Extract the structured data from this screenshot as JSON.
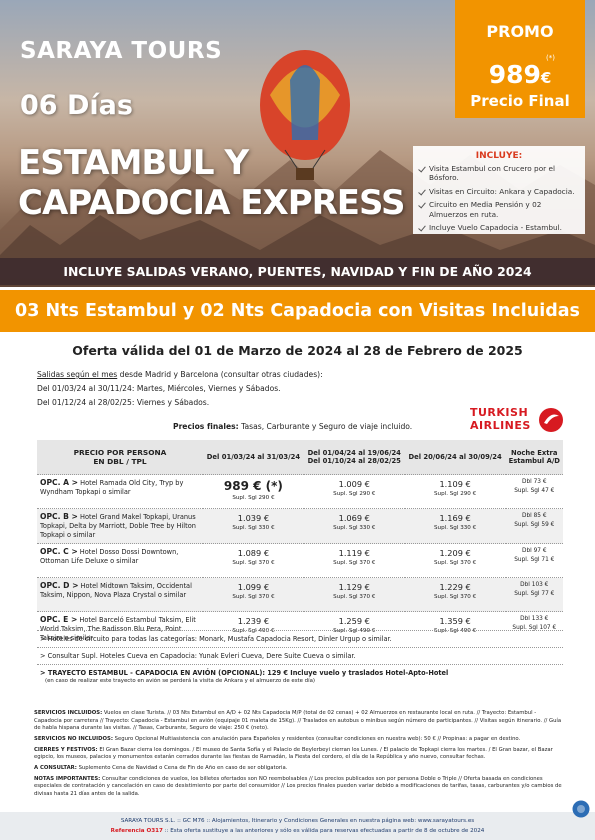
{
  "header": {
    "brand": "SARAYA TOURS",
    "days": "06 Días",
    "title_line1": "ESTAMBUL Y",
    "title_line2": "CAPADOCIA EXPRESS",
    "promo": {
      "label": "PROMO",
      "note": "(*)",
      "price": "989",
      "currency": "€",
      "caption": "Precio Final"
    },
    "includes": {
      "title": "INCLUYE:",
      "items": [
        "Visita Estambul con Crucero por el Bósforo.",
        "Visitas en Circuito: Ankara y Capadocia.",
        "Circuito en Media Pensión y 02 Almuerzos en ruta.",
        "Incluye Vuelo Capadocia - Estambul."
      ]
    },
    "banner": "INCLUYE SALIDAS VERANO, PUENTES, NAVIDAD Y FIN DE AÑO 2024"
  },
  "subtitle": "03 Nts Estambul y 02 Nts Capadocia con Visitas Incluidas",
  "validity": "Oferta válida del 01 de Marzo de 2024 al 28 de Febrero de 2025",
  "departures": {
    "intro_underlined": "Salidas según el mes",
    "intro_rest": " desde Madrid y Barcelona (consultar otras ciudades):",
    "lines": [
      "Del 01/03/24 al 30/11/24: Martes, Miércoles, Viernes y Sábados.",
      "Del 01/12/24 al 28/02/25: Viernes y Sábados."
    ]
  },
  "prices_note": {
    "label": "Precios finales:",
    "text": " Tasas, Carburante y Seguro de viaje incluido."
  },
  "airline": {
    "name1": "TURKISH",
    "name2": "AIRLINES"
  },
  "table": {
    "headers": [
      [
        "PRECIO POR PERSONA",
        "EN DBL / TPL"
      ],
      [
        "Del 01/03/24 al 31/03/24"
      ],
      [
        "Del 01/04/24 al 19/06/24",
        "Del 01/10/24 al 28/02/25"
      ],
      [
        "Del 20/06/24 al 30/09/24"
      ],
      [
        "Noche Extra",
        "Estambul A/D"
      ]
    ],
    "rows": [
      {
        "option": "OPC. A >",
        "hotels": " Hotel Ramada Old City, Tryp by Wyndham Topkapi o similar",
        "prices": [
          [
            "989 € (*)",
            "Supl. Sgl 290 €"
          ],
          [
            "1.009 €",
            "Supl. Sgl 290 €"
          ],
          [
            "1.109 €",
            "Supl. Sgl 290 €"
          ]
        ],
        "extra": [
          "Dbl 73 €",
          "Supl. Sgl 47 €"
        ]
      },
      {
        "option": "OPC. B >",
        "hotels": " Hotel Grand Makel Topkapi, Uranus Topkapi, Delta by Marriott, Doble Tree by Hilton Topkapi o similar",
        "prices": [
          [
            "1.039 €",
            "Supl. Sgl 330 €"
          ],
          [
            "1.069 €",
            "Supl. Sgl 330 €"
          ],
          [
            "1.169 €",
            "Supl. Sgl 330 €"
          ]
        ],
        "extra": [
          "Dbl 85 €",
          "Supl. Sgl 59 €"
        ]
      },
      {
        "option": "OPC. C >",
        "hotels": " Hotel Dosso Dossi Downtown, Ottoman Life Deluxe o similar",
        "prices": [
          [
            "1.089 €",
            "Supl. Sgl 370 €"
          ],
          [
            "1.119 €",
            "Supl. Sgl 370 €"
          ],
          [
            "1.209 €",
            "Supl. Sgl 370 €"
          ]
        ],
        "extra": [
          "Dbl 97 €",
          "Supl. Sgl 71 €"
        ]
      },
      {
        "option": "OPC. D >",
        "hotels": " Hotel Midtown Taksim, Occidental Taksim, Nippon, Nova Plaza Crystal o similar",
        "prices": [
          [
            "1.099 €",
            "Supl. Sgl 370 €"
          ],
          [
            "1.129 €",
            "Supl. Sgl 370 €"
          ],
          [
            "1.229 €",
            "Supl. Sgl 370 €"
          ]
        ],
        "extra": [
          "Dbl 103 €",
          "Supl. Sgl 77 €"
        ]
      },
      {
        "option": "OPC. E >",
        "hotels": " Hotel Barceló Estambul Taksim, Elit World Taksim, The Radisson Blu Pera, Point Taksim o similar",
        "prices": [
          [
            "1.239 €",
            "Supl. Sgl 490 €"
          ],
          [
            "1.259 €",
            "Supl. Sgl 490 €"
          ],
          [
            "1.359 €",
            "Supl. Sgl 490 €"
          ]
        ],
        "extra": [
          "Dbl 133 €",
          "Supl. Sgl 107 €"
        ]
      }
    ]
  },
  "extras": [
    "> Hoteles de circuito para todas las categorías: Monark, Mustafa Capadocia Resort, Dinler Urgup o similar.",
    "> Consultar Supl. Hoteles Cueva en Capadocia: Yunak Evleri Cueva, Dere Suite Cueva o similar.",
    "> TRAYECTO ESTAMBUL - CAPADOCIA EN AVIÓN (OPCIONAL): 129 € Incluye vuelo y traslados Hotel-Apto-Hotel",
    "(en caso de realizar este trayecto en avión se perderá la visita de Ankara y el almuerzo de este día)"
  ],
  "notes": [
    {
      "label": "SERVICIOS INCLUIDOS:",
      "text": " Vuelos en clase Turista. // 03 Nts Estambul en A/D + 02 Nts Capadocia M/P (total de 02 cenas) + 02 Almuerzos en restaurante local en ruta. // Trayecto: Estambul - Capadocia por carretera // Trayecto: Capadocia - Estambul en avión (equipaje 01 maleta de 15Kg). // Traslados en autobus o minibus según número de participantes. // Visitas según itinerario. // Guía de habla hispana durante las visitas. // Tasas, Carburante, Seguro de viaje: 250 € (neto)."
    },
    {
      "label": "SERVICIOS NO INCLUIDOS:",
      "text": " Seguro Opcional Multiasistencia con anulación para Españoles y residentes (consultar condiciones en nuestra web): 50 € // Propinas: a pagar en destino."
    },
    {
      "label": "CIERRES Y FESTIVOS:",
      "text": " El Gran Bazar cierra los domingos. / El museo de Santa Sofía y el Palacio de Beylerbeyi cierran los Lunes. / El palacio de Topkapi cierra los martes. / El Gran bazar, el Bazar egipcio, los museos, palacios y monumentos estarán cerrados durante las fiestas de Ramadán, la Fiesta del cordero, el día de la República y año nuevo, consultar fechas."
    },
    {
      "label": "A CONSULTAR:",
      "text": " Suplemento Cena de Navidad o Cena de Fin de Año en caso de ser obligatoria."
    },
    {
      "label": "NOTAS IMPORTANTES:",
      "text": " Consultar condiciones de vuelos, los billetes ofertados son NO reembolsables // Los precios publicados son por persona Doble o Triple // Oferta basada en condiciones especiales de contratación y cancelación en caso de desistimiento por parte del consumidor // Los precios finales pueden variar debido a modificaciones de tarifas, tasas, carburantes y/o cambios de divisas hasta 21 días antes de la salida."
    }
  ],
  "footer": {
    "line1": "SARAYA TOURS S.L. :: GC M76 :: Alojamientos, Itinerario y Condiciones Generales en nuestra página web: www.sarayatours.es",
    "ref": "Referencia O317",
    "line2": " :: Esta oferta sustituye a las anteriores y sólo es válida para reservas efectuadas a partir de 8 de octubre de 2024"
  }
}
